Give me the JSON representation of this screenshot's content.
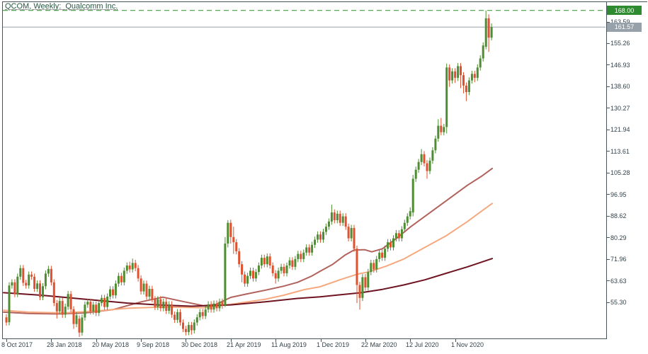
{
  "window": {
    "title": "QCOM, Weekly:  Qualcomm Inc."
  },
  "chart_data": {
    "type": "candlestick",
    "title": "QCOM, Weekly:  Qualcomm Inc.",
    "symbol": "QCOM",
    "timeframe": "Weekly",
    "company": "Qualcomm Inc.",
    "grid": false,
    "x_axis": {
      "labels": [
        "8 Oct 2017",
        "28 Jan 2018",
        "20 May 2018",
        "9 Sep 2018",
        "30 Dec 2018",
        "21 Apr 2019",
        "11 Aug 2019",
        "1 Dec 2019",
        "22 Mar 2020",
        "12 Jul 2020",
        "1 Nov 2020"
      ]
    },
    "y_axis": {
      "labels": [
        "163.59",
        "155.26",
        "146.93",
        "138.60",
        "130.27",
        "121.94",
        "113.61",
        "105.28",
        "96.95",
        "88.62",
        "80.29",
        "71.96",
        "63.63",
        "55.30"
      ],
      "values": [
        163.59,
        155.26,
        146.93,
        138.6,
        130.27,
        121.94,
        113.61,
        105.28,
        96.95,
        88.62,
        80.29,
        71.96,
        63.63,
        55.3
      ],
      "range_hint": [
        44,
        170
      ]
    },
    "key_levels": {
      "ath": {
        "value": 168.0,
        "label": "168.00"
      },
      "bid": {
        "value": 161.57,
        "label": "161.57"
      }
    },
    "colors": {
      "up": "#4e8d31",
      "down": "#e0522f",
      "ath_line": "#2f8b2f",
      "ath_box": "#2f8b2f",
      "bid_line": "#98a2aa",
      "bid_box": "#97a1a9",
      "axis": "#46565c",
      "tick_text": "#33424a",
      "title_text": "#2a5742",
      "ma_fast": "#b2625c",
      "ma_mid": "#f6a97f",
      "ma_slow": "#6e1420"
    },
    "ohlc": [
      [
        49.5,
        50.7,
        46.3,
        47.5
      ],
      [
        47.6,
        63.0,
        46.4,
        61.8
      ],
      [
        61.8,
        64.2,
        60.6,
        63.0
      ],
      [
        63.0,
        64.2,
        57.3,
        58.5
      ],
      [
        58.5,
        66.4,
        57.3,
        65.2
      ],
      [
        65.2,
        69.7,
        64.0,
        68.5
      ],
      [
        68.5,
        69.7,
        61.6,
        62.8
      ],
      [
        62.8,
        64.0,
        60.6,
        61.8
      ],
      [
        61.8,
        67.2,
        60.6,
        66.0
      ],
      [
        66.0,
        67.2,
        64.0,
        65.2
      ],
      [
        65.2,
        66.4,
        59.3,
        60.5
      ],
      [
        60.5,
        63.8,
        59.3,
        62.6
      ],
      [
        62.6,
        63.8,
        56.1,
        57.3
      ],
      [
        57.3,
        62.7,
        56.1,
        61.5
      ],
      [
        61.5,
        67.6,
        60.3,
        66.4
      ],
      [
        66.4,
        69.4,
        65.2,
        68.2
      ],
      [
        68.2,
        69.4,
        61.8,
        63.0
      ],
      [
        63.0,
        64.2,
        53.8,
        55.0
      ],
      [
        55.0,
        56.2,
        49.0,
        51.8
      ],
      [
        51.8,
        57.0,
        50.6,
        55.8
      ],
      [
        55.8,
        57.0,
        49.3,
        50.5
      ],
      [
        50.5,
        54.8,
        49.3,
        53.6
      ],
      [
        53.6,
        59.7,
        52.4,
        58.5
      ],
      [
        58.5,
        59.7,
        51.4,
        52.6
      ],
      [
        52.6,
        53.8,
        45.0,
        46.9
      ],
      [
        46.9,
        51.5,
        45.7,
        50.3
      ],
      [
        49.0,
        50.2,
        41.9,
        43.6
      ],
      [
        43.6,
        50.6,
        42.4,
        49.4
      ],
      [
        49.4,
        55.6,
        48.2,
        54.4
      ],
      [
        54.4,
        56.7,
        53.2,
        55.5
      ],
      [
        55.5,
        56.7,
        50.6,
        51.8
      ],
      [
        51.8,
        55.6,
        50.6,
        54.4
      ],
      [
        54.4,
        55.6,
        50.0,
        51.2
      ],
      [
        51.2,
        56.2,
        50.0,
        55.0
      ],
      [
        55.0,
        58.2,
        53.8,
        57.0
      ],
      [
        57.0,
        58.2,
        52.3,
        53.5
      ],
      [
        53.5,
        58.7,
        52.3,
        57.5
      ],
      [
        57.5,
        61.5,
        56.3,
        60.3
      ],
      [
        60.3,
        61.5,
        56.8,
        58.0
      ],
      [
        58.0,
        63.7,
        56.8,
        62.5
      ],
      [
        62.5,
        66.7,
        61.3,
        65.5
      ],
      [
        65.5,
        66.7,
        61.8,
        63.0
      ],
      [
        63.0,
        68.7,
        61.8,
        67.5
      ],
      [
        67.5,
        70.7,
        66.3,
        69.5
      ],
      [
        69.5,
        71.0,
        66.8,
        68.0
      ],
      [
        68.0,
        72.2,
        66.8,
        70.5
      ],
      [
        70.5,
        71.7,
        67.3,
        68.5
      ],
      [
        68.5,
        69.7,
        63.3,
        64.5
      ],
      [
        64.5,
        65.7,
        58.3,
        59.5
      ],
      [
        59.5,
        63.7,
        58.3,
        62.5
      ],
      [
        62.5,
        63.7,
        56.3,
        57.5
      ],
      [
        57.5,
        61.7,
        56.3,
        60.5
      ],
      [
        60.5,
        61.7,
        55.3,
        56.5
      ],
      [
        56.5,
        57.7,
        52.3,
        53.5
      ],
      [
        53.5,
        57.7,
        52.3,
        56.5
      ],
      [
        56.5,
        57.7,
        51.8,
        53.0
      ],
      [
        53.0,
        56.7,
        51.8,
        55.5
      ],
      [
        55.5,
        56.7,
        50.8,
        52.0
      ],
      [
        52.0,
        55.7,
        50.8,
        54.5
      ],
      [
        54.5,
        55.7,
        49.3,
        50.5
      ],
      [
        50.5,
        51.7,
        47.3,
        48.5
      ],
      [
        48.5,
        52.7,
        47.3,
        51.5
      ],
      [
        51.5,
        52.7,
        46.3,
        47.5
      ],
      [
        47.5,
        48.7,
        43.8,
        45.0
      ],
      [
        45.0,
        46.2,
        42.5,
        43.8
      ],
      [
        43.8,
        47.7,
        42.6,
        46.5
      ],
      [
        46.5,
        47.7,
        42.8,
        44.5
      ],
      [
        44.5,
        48.7,
        43.3,
        47.5
      ],
      [
        47.5,
        50.7,
        46.3,
        49.5
      ],
      [
        49.5,
        52.7,
        48.3,
        51.5
      ],
      [
        51.5,
        52.7,
        48.8,
        50.0
      ],
      [
        50.0,
        53.7,
        48.8,
        52.5
      ],
      [
        52.5,
        55.7,
        51.3,
        54.5
      ],
      [
        54.5,
        55.7,
        51.3,
        52.5
      ],
      [
        52.5,
        56.0,
        51.3,
        54.8
      ],
      [
        54.8,
        56.0,
        51.8,
        53.0
      ],
      [
        53.0,
        56.7,
        51.8,
        55.5
      ],
      [
        55.5,
        56.7,
        52.8,
        54.0
      ],
      [
        54.0,
        80.5,
        53.5,
        78.0
      ],
      [
        78.0,
        87.0,
        76.5,
        86.0
      ],
      [
        86.0,
        87.2,
        78.0,
        80.5
      ],
      [
        80.5,
        84.5,
        74.0,
        78.5
      ],
      [
        78.5,
        79.7,
        73.8,
        75.0
      ],
      [
        75.0,
        76.2,
        68.8,
        70.0
      ],
      [
        70.0,
        71.2,
        63.0,
        66.0
      ],
      [
        66.0,
        67.2,
        61.3,
        62.5
      ],
      [
        62.5,
        66.7,
        61.3,
        65.5
      ],
      [
        65.5,
        68.7,
        64.3,
        67.5
      ],
      [
        67.5,
        68.7,
        63.3,
        64.5
      ],
      [
        64.5,
        68.2,
        63.3,
        67.0
      ],
      [
        67.0,
        70.7,
        65.8,
        69.5
      ],
      [
        69.5,
        73.7,
        68.3,
        72.5
      ],
      [
        72.5,
        73.7,
        68.8,
        70.0
      ],
      [
        70.0,
        74.2,
        68.8,
        73.0
      ],
      [
        73.0,
        74.2,
        68.3,
        69.5
      ],
      [
        69.5,
        70.7,
        65.3,
        66.5
      ],
      [
        66.5,
        67.7,
        62.5,
        64.5
      ],
      [
        64.5,
        68.7,
        63.3,
        67.5
      ],
      [
        67.5,
        70.2,
        66.3,
        69.0
      ],
      [
        69.0,
        70.2,
        65.3,
        66.5
      ],
      [
        66.5,
        70.7,
        65.3,
        69.5
      ],
      [
        69.5,
        72.7,
        68.3,
        71.5
      ],
      [
        71.5,
        72.7,
        67.8,
        69.0
      ],
      [
        69.0,
        73.2,
        67.8,
        72.0
      ],
      [
        72.0,
        75.2,
        70.8,
        74.0
      ],
      [
        74.0,
        75.2,
        70.8,
        72.0
      ],
      [
        72.0,
        75.7,
        70.8,
        74.5
      ],
      [
        74.5,
        77.7,
        73.3,
        76.5
      ],
      [
        76.5,
        77.7,
        73.3,
        74.5
      ],
      [
        74.5,
        78.7,
        73.3,
        77.5
      ],
      [
        77.5,
        80.7,
        76.3,
        79.5
      ],
      [
        79.5,
        82.7,
        78.3,
        81.5
      ],
      [
        81.5,
        82.7,
        78.3,
        79.5
      ],
      [
        79.5,
        83.7,
        78.3,
        82.5
      ],
      [
        82.5,
        85.7,
        81.3,
        84.5
      ],
      [
        84.5,
        87.7,
        83.3,
        86.5
      ],
      [
        86.5,
        93.0,
        85.3,
        90.0
      ],
      [
        90.0,
        91.2,
        85.8,
        87.0
      ],
      [
        87.0,
        90.7,
        85.8,
        89.5
      ],
      [
        89.5,
        90.7,
        84.8,
        86.0
      ],
      [
        86.0,
        89.7,
        84.8,
        88.5
      ],
      [
        88.5,
        89.7,
        83.3,
        84.5
      ],
      [
        84.5,
        85.7,
        78.8,
        80.0
      ],
      [
        80.0,
        85.2,
        78.8,
        84.0
      ],
      [
        84.0,
        85.2,
        74.8,
        76.0
      ],
      [
        76.0,
        77.2,
        55.0,
        62.0
      ],
      [
        62.0,
        63.2,
        52.5,
        57.0
      ],
      [
        57.0,
        66.2,
        55.8,
        65.0
      ],
      [
        65.0,
        66.2,
        59.8,
        61.0
      ],
      [
        61.0,
        68.2,
        59.8,
        67.0
      ],
      [
        67.0,
        71.7,
        65.8,
        70.5
      ],
      [
        70.5,
        71.7,
        66.8,
        68.0
      ],
      [
        68.0,
        73.2,
        66.8,
        72.0
      ],
      [
        72.0,
        75.7,
        70.8,
        74.5
      ],
      [
        74.5,
        75.7,
        71.3,
        72.5
      ],
      [
        72.5,
        77.2,
        71.3,
        76.0
      ],
      [
        76.0,
        79.7,
        74.8,
        78.5
      ],
      [
        78.5,
        79.7,
        75.3,
        76.5
      ],
      [
        76.5,
        81.2,
        75.3,
        80.0
      ],
      [
        80.0,
        83.2,
        78.8,
        82.0
      ],
      [
        82.0,
        83.2,
        78.8,
        80.0
      ],
      [
        80.0,
        84.7,
        78.8,
        83.5
      ],
      [
        83.5,
        87.2,
        82.3,
        86.0
      ],
      [
        86.0,
        89.7,
        84.8,
        88.5
      ],
      [
        88.5,
        92.0,
        87.3,
        90.5
      ],
      [
        90.0,
        104.5,
        88.5,
        103.0
      ],
      [
        103.0,
        107.7,
        101.8,
        106.5
      ],
      [
        106.5,
        110.7,
        105.3,
        109.5
      ],
      [
        109.5,
        114.5,
        108.3,
        112.5
      ],
      [
        112.5,
        113.7,
        107.8,
        109.0
      ],
      [
        109.0,
        110.2,
        103.0,
        106.0
      ],
      [
        106.0,
        111.2,
        104.8,
        110.0
      ],
      [
        110.0,
        115.2,
        108.8,
        114.0
      ],
      [
        114.0,
        119.7,
        112.8,
        118.5
      ],
      [
        118.5,
        126.0,
        117.3,
        123.5
      ],
      [
        123.5,
        126.5,
        119.8,
        121.0
      ],
      [
        121.0,
        124.2,
        119.8,
        123.0
      ],
      [
        123.0,
        147.5,
        120.5,
        146.0
      ],
      [
        146.0,
        147.2,
        138.5,
        141.0
      ],
      [
        141.0,
        145.7,
        139.8,
        144.5
      ],
      [
        144.5,
        145.7,
        140.0,
        142.0
      ],
      [
        142.0,
        147.7,
        140.8,
        146.5
      ],
      [
        146.5,
        147.7,
        138.0,
        143.0
      ],
      [
        143.0,
        144.2,
        136.0,
        139.0
      ],
      [
        139.0,
        140.2,
        133.0,
        136.5
      ],
      [
        136.5,
        142.2,
        135.3,
        141.0
      ],
      [
        141.0,
        144.7,
        139.8,
        143.5
      ],
      [
        143.5,
        144.7,
        140.3,
        142.0
      ],
      [
        142.0,
        147.2,
        140.8,
        146.0
      ],
      [
        146.0,
        150.7,
        144.8,
        149.5
      ],
      [
        149.5,
        155.7,
        148.3,
        154.5
      ],
      [
        154.0,
        168.0,
        153.0,
        165.0
      ],
      [
        165.0,
        166.5,
        152.0,
        157.5
      ],
      [
        157.5,
        163.0,
        156.5,
        161.6
      ]
    ],
    "overlays": [
      {
        "name": "ma-fast-line",
        "color": "#b2625c",
        "points": [
          [
            5,
            51.5
          ],
          [
            40,
            51.0
          ],
          [
            80,
            50.8
          ],
          [
            120,
            51.2
          ],
          [
            160,
            52.5
          ],
          [
            200,
            55.5
          ],
          [
            230,
            57.3
          ],
          [
            260,
            55.5
          ],
          [
            287,
            54.0
          ],
          [
            305,
            54.5
          ],
          [
            326,
            57.2
          ],
          [
            350,
            58.6
          ],
          [
            375,
            60.0
          ],
          [
            400,
            61.5
          ],
          [
            420,
            63.0
          ],
          [
            440,
            65.4
          ],
          [
            452,
            67.3
          ],
          [
            470,
            70.0
          ],
          [
            487,
            73.5
          ],
          [
            500,
            75.5
          ],
          [
            515,
            75.6
          ],
          [
            525,
            74.8
          ],
          [
            540,
            76.0
          ],
          [
            560,
            80.0
          ],
          [
            580,
            84.5
          ],
          [
            600,
            88.5
          ],
          [
            620,
            92.5
          ],
          [
            640,
            96.5
          ],
          [
            660,
            100.5
          ],
          [
            680,
            104.0
          ],
          [
            695,
            107.0
          ]
        ]
      },
      {
        "name": "ma-mid-line",
        "color": "#f6a97f",
        "points": [
          [
            5,
            52.2
          ],
          [
            40,
            51.5
          ],
          [
            90,
            51.2
          ],
          [
            140,
            52.0
          ],
          [
            180,
            53.0
          ],
          [
            230,
            53.5
          ],
          [
            287,
            53.2
          ],
          [
            326,
            54.5
          ],
          [
            375,
            56.5
          ],
          [
            400,
            58.0
          ],
          [
            430,
            60.2
          ],
          [
            452,
            61.3
          ],
          [
            480,
            64.0
          ],
          [
            505,
            66.2
          ],
          [
            520,
            67.0
          ],
          [
            545,
            69.2
          ],
          [
            570,
            72.0
          ],
          [
            600,
            76.5
          ],
          [
            630,
            81.0
          ],
          [
            660,
            86.5
          ],
          [
            680,
            90.5
          ],
          [
            695,
            93.5
          ]
        ]
      },
      {
        "name": "ma-slow-line",
        "color": "#6e1420",
        "points": [
          [
            5,
            59.0
          ],
          [
            60,
            58.0
          ],
          [
            120,
            56.5
          ],
          [
            180,
            55.0
          ],
          [
            230,
            54.2
          ],
          [
            270,
            53.8
          ],
          [
            326,
            54.3
          ],
          [
            375,
            55.5
          ],
          [
            420,
            56.8
          ],
          [
            452,
            57.4
          ],
          [
            480,
            58.2
          ],
          [
            510,
            59.0
          ],
          [
            540,
            60.3
          ],
          [
            570,
            62.0
          ],
          [
            600,
            64.0
          ],
          [
            630,
            66.5
          ],
          [
            660,
            69.0
          ],
          [
            695,
            72.2
          ]
        ]
      }
    ]
  }
}
